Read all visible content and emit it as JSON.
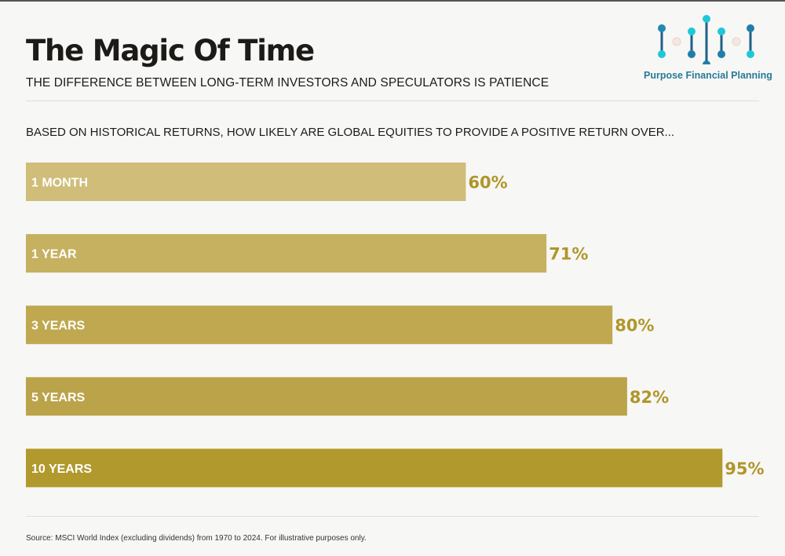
{
  "title": "The Magic Of Time",
  "subtitle": "THE DIFFERENCE BETWEEN LONG-TERM INVESTORS AND SPECULATORS IS PATIENCE",
  "brand": {
    "name": "Purpose Financial Planning",
    "color": "#2a7a99"
  },
  "question": "BASED ON HISTORICAL RETURNS, HOW LIKELY ARE GLOBAL EQUITIES TO PROVIDE A POSITIVE RETURN OVER...",
  "source": "Source: MSCI World Index (excluding dividends) from 1970 to 2024. For illustrative purposes only.",
  "chart_data": {
    "type": "bar",
    "orientation": "horizontal",
    "categories": [
      "1 MONTH",
      "1 YEAR",
      "3 YEARS",
      "5 YEARS",
      "10 YEARS"
    ],
    "values": [
      60,
      71,
      80,
      82,
      95
    ],
    "value_labels": [
      "60%",
      "71%",
      "80%",
      "82%",
      "95%"
    ],
    "unit": "%",
    "xlim": [
      0,
      100
    ],
    "bar_colors": [
      "#cfbd79",
      "#c6b161",
      "#bfa850",
      "#bba34a",
      "#b2992d"
    ],
    "label_color": "#b0962a",
    "grid": false
  }
}
